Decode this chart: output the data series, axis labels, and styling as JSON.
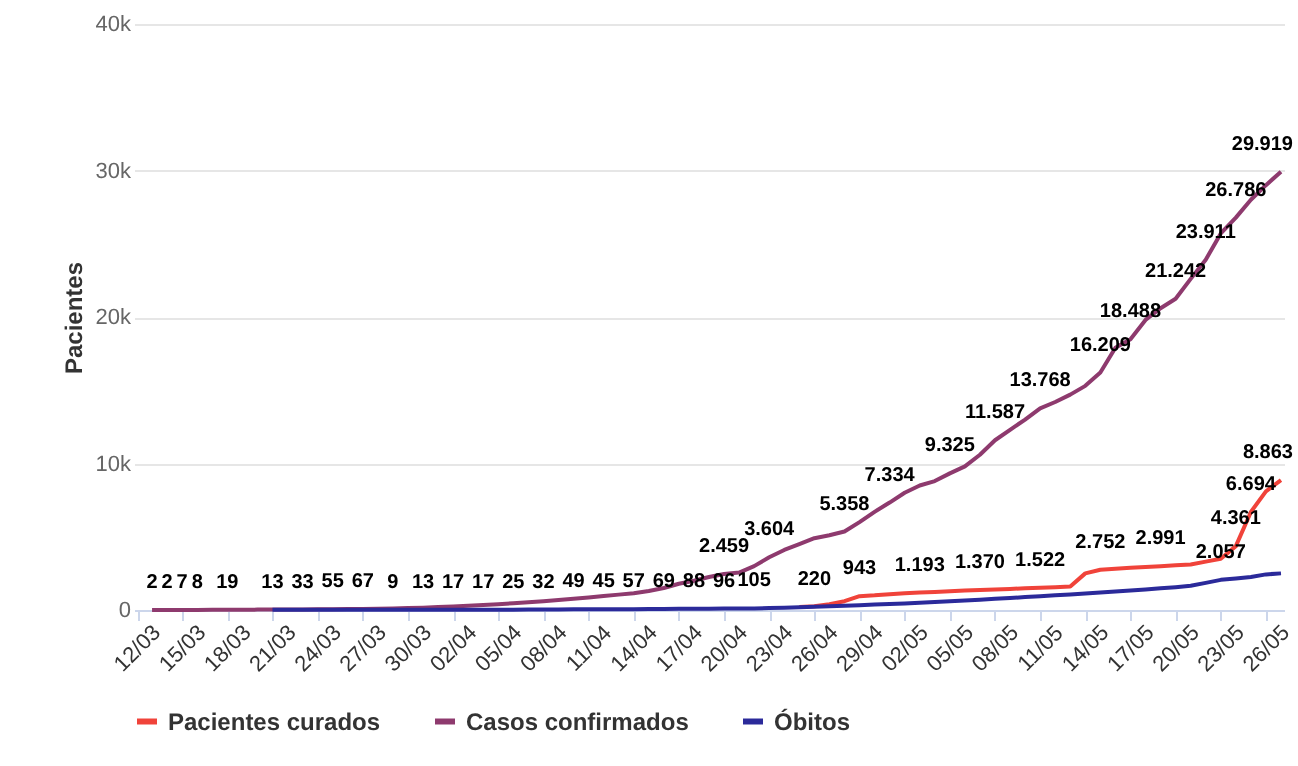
{
  "chart_data": {
    "type": "line",
    "ylabel": "Pacientes",
    "categories": [
      "12/03",
      null,
      null,
      "15/03",
      null,
      null,
      "18/03",
      null,
      null,
      "21/03",
      null,
      null,
      "24/03",
      null,
      null,
      "27/03",
      null,
      null,
      "30/03",
      null,
      null,
      "02/04",
      null,
      null,
      "05/04",
      null,
      null,
      "08/04",
      null,
      null,
      "11/04",
      null,
      null,
      "14/04",
      null,
      null,
      "17/04",
      null,
      null,
      "20/04",
      null,
      null,
      "23/04",
      null,
      null,
      "26/04",
      null,
      null,
      "29/04",
      null,
      null,
      "02/05",
      null,
      null,
      "05/05",
      null,
      null,
      "08/05",
      null,
      null,
      "11/05",
      null,
      null,
      "14/05",
      null,
      null,
      "17/05",
      null,
      null,
      "20/05",
      null,
      null,
      "23/05",
      null,
      null,
      "26/05",
      null
    ],
    "ylim": [
      0,
      40000
    ],
    "yticks": [
      {
        "value": 0,
        "label": "0"
      },
      {
        "value": 10000,
        "label": "10k"
      },
      {
        "value": 20000,
        "label": "20k"
      },
      {
        "value": 30000,
        "label": "30k"
      },
      {
        "value": 40000,
        "label": "40k"
      }
    ],
    "grid": "y",
    "legend": "bottom",
    "series": [
      {
        "name": "Pacientes curados",
        "color": "#f0433a",
        "values": [
          null,
          null,
          null,
          null,
          null,
          null,
          null,
          null,
          null,
          null,
          null,
          null,
          null,
          null,
          null,
          null,
          null,
          null,
          null,
          null,
          null,
          null,
          null,
          null,
          null,
          null,
          null,
          null,
          null,
          null,
          null,
          null,
          null,
          null,
          null,
          null,
          null,
          null,
          null,
          null,
          null,
          null,
          null,
          null,
          200,
          250,
          400,
          600,
          943,
          1000,
          1080,
          1150,
          1193,
          1230,
          1280,
          1330,
          1370,
          1400,
          1440,
          1480,
          1522,
          1560,
          1600,
          2500,
          2752,
          2820,
          2880,
          2940,
          2991,
          3050,
          3100,
          3300,
          3500,
          4361,
          6694,
          8100,
          8863
        ],
        "value_labels": [
          null,
          null,
          null,
          null,
          null,
          null,
          null,
          null,
          null,
          null,
          null,
          null,
          null,
          null,
          null,
          null,
          null,
          null,
          null,
          null,
          null,
          null,
          null,
          null,
          null,
          null,
          null,
          null,
          null,
          null,
          null,
          null,
          null,
          null,
          null,
          null,
          null,
          null,
          null,
          null,
          null,
          null,
          null,
          null,
          null,
          null,
          null,
          null,
          "943",
          null,
          null,
          null,
          "1.193",
          null,
          null,
          null,
          "1.370",
          null,
          null,
          null,
          "1.522",
          null,
          null,
          null,
          "2.752",
          null,
          null,
          null,
          "2.991",
          null,
          null,
          null,
          null,
          "4.361",
          "6.694",
          null,
          "8.863"
        ]
      },
      {
        "name": "Casos confirmados",
        "color": "#8e3a6e",
        "values": [
          null,
          2,
          2,
          7,
          8,
          12,
          19,
          22,
          26,
          29,
          31,
          33,
          44,
          55,
          60,
          67,
          80,
          100,
          130,
          160,
          200,
          240,
          290,
          340,
          400,
          460,
          530,
          600,
          680,
          760,
          850,
          950,
          1050,
          1150,
          1300,
          1500,
          1794,
          2000,
          2250,
          2459,
          2553,
          2993,
          3604,
          4100,
          4500,
          4900,
          5100,
          5358,
          6000,
          6700,
          7334,
          8000,
          8500,
          8800,
          9325,
          9800,
          10600,
          11587,
          12300,
          13000,
          13768,
          14200,
          14700,
          15300,
          16209,
          17900,
          18488,
          19800,
          20600,
          21242,
          22600,
          23911,
          25700,
          26786,
          28000,
          29000,
          29919
        ],
        "value_labels": [
          null,
          "2",
          "2",
          "7",
          "8",
          null,
          "19",
          null,
          null,
          null,
          null,
          "33",
          null,
          "55",
          null,
          "67",
          null,
          null,
          null,
          null,
          null,
          null,
          null,
          null,
          null,
          null,
          null,
          null,
          null,
          null,
          null,
          null,
          null,
          null,
          null,
          null,
          null,
          null,
          null,
          "2.459",
          null,
          null,
          "3.604",
          null,
          null,
          null,
          null,
          "5.358",
          null,
          null,
          "7.334",
          null,
          null,
          null,
          "9.325",
          null,
          null,
          "11.587",
          null,
          null,
          "13.768",
          null,
          null,
          null,
          "16.209",
          null,
          "18.488",
          null,
          null,
          "21.242",
          null,
          "23.911",
          null,
          "26.786",
          null,
          null,
          "29.919"
        ]
      },
      {
        "name": "Óbitos",
        "color": "#2b2a9a",
        "values": [
          null,
          null,
          null,
          null,
          null,
          null,
          null,
          null,
          null,
          13,
          13,
          13,
          13,
          13,
          13,
          13,
          13,
          9,
          11,
          13,
          15,
          17,
          17,
          17,
          21,
          25,
          28,
          32,
          40,
          49,
          47,
          45,
          50,
          57,
          63,
          69,
          78,
          88,
          92,
          96,
          100,
          105,
          130,
          160,
          190,
          220,
          250,
          290,
          330,
          370,
          410,
          450,
          500,
          550,
          600,
          650,
          700,
          760,
          820,
          880,
          940,
          1000,
          1060,
          1120,
          1190,
          1260,
          1330,
          1400,
          1480,
          1560,
          1650,
          1850,
          2057,
          2150,
          2250,
          2430,
          2500
        ],
        "value_labels": [
          null,
          null,
          null,
          null,
          null,
          null,
          null,
          null,
          null,
          "13",
          null,
          null,
          null,
          null,
          null,
          null,
          null,
          "9",
          null,
          "13",
          null,
          "17",
          null,
          "17",
          null,
          "25",
          null,
          "32",
          null,
          "49",
          null,
          "45",
          null,
          "57",
          null,
          "69",
          null,
          "88",
          null,
          "96",
          null,
          "105",
          null,
          null,
          null,
          "220",
          null,
          null,
          null,
          null,
          null,
          null,
          null,
          null,
          null,
          null,
          null,
          null,
          null,
          null,
          null,
          null,
          null,
          null,
          null,
          null,
          null,
          null,
          null,
          null,
          null,
          null,
          "2.057",
          null,
          null,
          null,
          null
        ]
      }
    ]
  }
}
